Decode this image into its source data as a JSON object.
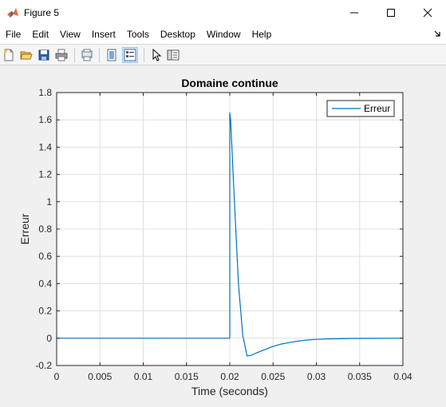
{
  "window": {
    "title": "Figure 5",
    "controls": [
      "minimize",
      "maximize",
      "close"
    ]
  },
  "menu": {
    "items": [
      "File",
      "Edit",
      "View",
      "Insert",
      "Tools",
      "Desktop",
      "Window",
      "Help"
    ]
  },
  "toolbar": {
    "buttons": [
      {
        "name": "new-figure-icon"
      },
      {
        "name": "open-file-icon"
      },
      {
        "name": "save-icon"
      },
      {
        "name": "print-icon"
      },
      {
        "name": "print-preview-icon"
      },
      {
        "name": "hide-plot-tools-icon"
      },
      {
        "name": "show-plot-tools-icon",
        "active": true
      },
      {
        "name": "edit-plot-arrow-icon"
      },
      {
        "name": "dock-plot-browser-icon"
      }
    ]
  },
  "colors": {
    "series": "#0072bd",
    "grid": "#dfdfdf",
    "axes": "#262626"
  },
  "chart_data": {
    "type": "line",
    "title": "Domaine continue",
    "xlabel": "Time (seconds)",
    "ylabel": "Erreur",
    "xlim": [
      0,
      0.04
    ],
    "ylim": [
      -0.2,
      1.8
    ],
    "xticks": [
      0,
      0.005,
      0.01,
      0.015,
      0.02,
      0.025,
      0.03,
      0.035,
      0.04
    ],
    "xtick_labels": [
      "0",
      "0.005",
      "0.01",
      "0.015",
      "0.02",
      "0.025",
      "0.03",
      "0.035",
      "0.04"
    ],
    "yticks": [
      -0.2,
      0,
      0.2,
      0.4,
      0.6,
      0.8,
      1,
      1.2,
      1.4,
      1.6,
      1.8
    ],
    "ytick_labels": [
      "-0.2",
      "0",
      "0.2",
      "0.4",
      "0.6",
      "0.8",
      "1",
      "1.2",
      "1.4",
      "1.6",
      "1.8"
    ],
    "grid": true,
    "legend_position": "top-right",
    "series": [
      {
        "name": "Erreur",
        "x": [
          0,
          0.02,
          0.02,
          0.0201,
          0.0205,
          0.021,
          0.0215,
          0.022,
          0.0225,
          0.023,
          0.024,
          0.025,
          0.026,
          0.027,
          0.028,
          0.029,
          0.03,
          0.032,
          0.034,
          0.036,
          0.04
        ],
        "y": [
          0,
          0,
          1.65,
          1.6,
          1.05,
          0.4,
          0.02,
          -0.13,
          -0.125,
          -0.11,
          -0.085,
          -0.06,
          -0.042,
          -0.03,
          -0.02,
          -0.013,
          -0.008,
          -0.004,
          -0.002,
          -0.001,
          0
        ]
      }
    ]
  }
}
